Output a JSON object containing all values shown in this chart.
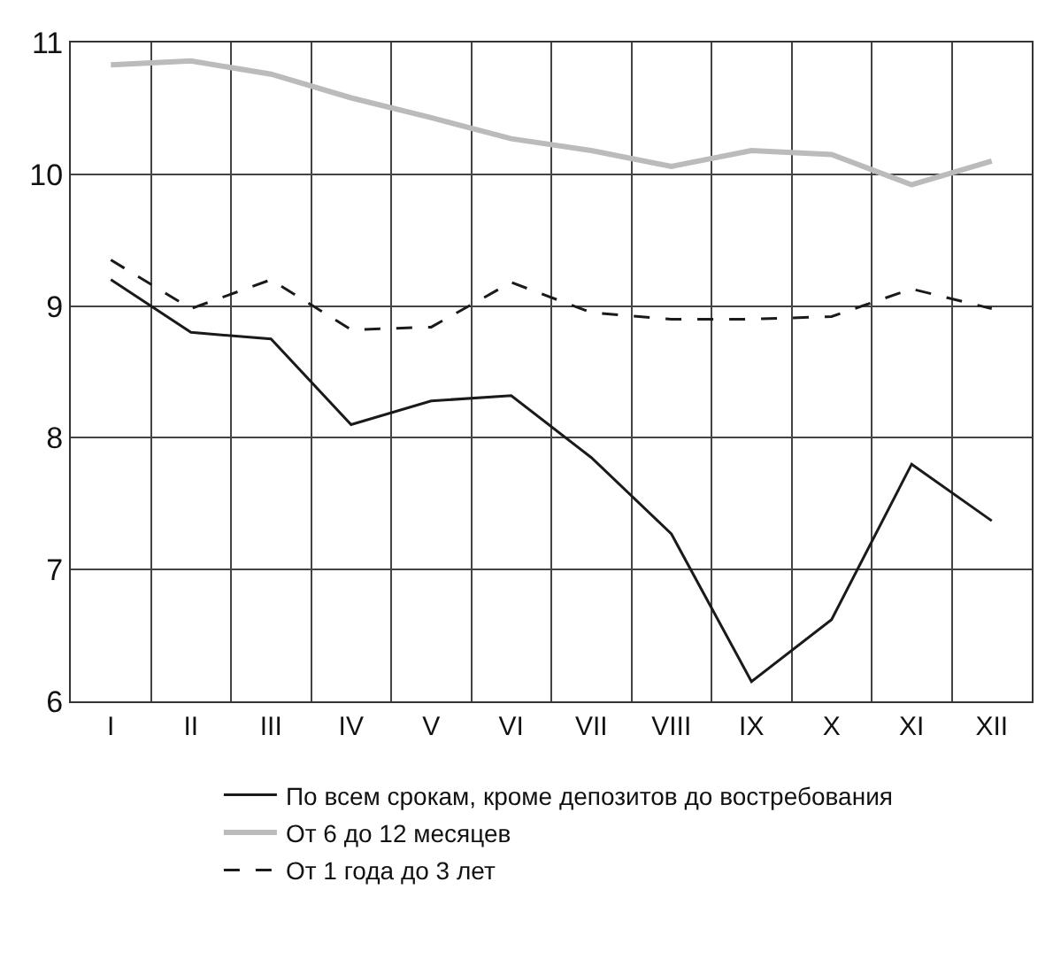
{
  "chart_data": {
    "type": "line",
    "categories": [
      "I",
      "II",
      "III",
      "IV",
      "V",
      "VI",
      "VII",
      "VIII",
      "IX",
      "X",
      "XI",
      "XII"
    ],
    "series": [
      {
        "name": "По всем срокам, кроме депозитов до востребования",
        "color": "#1a1a1a",
        "line_style": "solid",
        "values": [
          9.2,
          8.8,
          8.75,
          8.1,
          8.28,
          8.32,
          7.85,
          7.27,
          6.15,
          6.62,
          7.8,
          7.37
        ]
      },
      {
        "name": "От 6 до 12 месяцев",
        "color": "#bbbbbb",
        "line_style": "solid",
        "values": [
          10.83,
          10.86,
          10.76,
          10.58,
          10.43,
          10.27,
          10.18,
          10.06,
          10.18,
          10.15,
          9.92,
          10.1
        ]
      },
      {
        "name": "От 1 года до 3 лет",
        "color": "#1a1a1a",
        "line_style": "dashed",
        "values": [
          9.35,
          8.98,
          9.2,
          8.82,
          8.84,
          9.18,
          8.95,
          8.9,
          8.9,
          8.92,
          9.13,
          8.98
        ]
      }
    ],
    "ylim": [
      6,
      11
    ],
    "yticks": [
      6,
      7,
      8,
      9,
      10,
      11
    ],
    "grid": true,
    "legend": "bottom",
    "marker": "none"
  }
}
